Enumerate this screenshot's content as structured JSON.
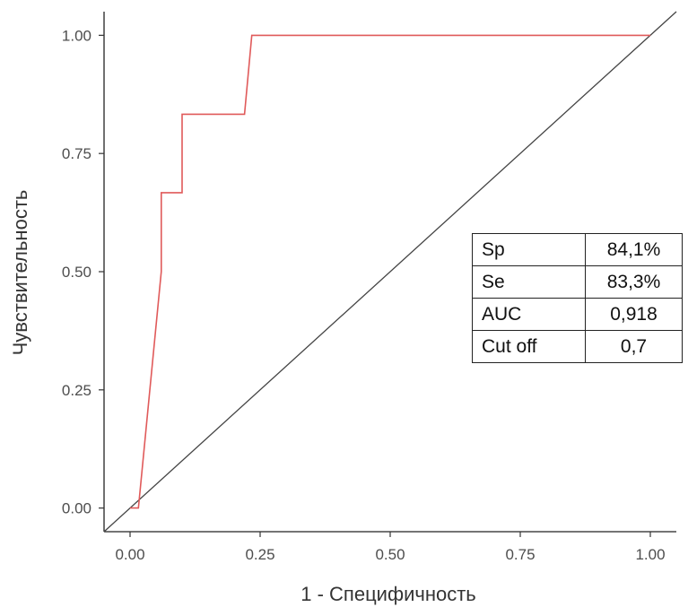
{
  "chart_data": {
    "type": "line",
    "xlabel": "1 - Специфичность",
    "ylabel": "Чувствительность",
    "xlim": [
      -0.05,
      1.05
    ],
    "ylim": [
      -0.05,
      1.05
    ],
    "x_ticks": [
      {
        "value": 0,
        "label": "0.00"
      },
      {
        "value": 0.25,
        "label": "0.25"
      },
      {
        "value": 0.5,
        "label": "0.50"
      },
      {
        "value": 0.75,
        "label": "0.75"
      },
      {
        "value": 1,
        "label": "1.00"
      }
    ],
    "y_ticks": [
      {
        "value": 0,
        "label": "0.00"
      },
      {
        "value": 0.25,
        "label": "0.25"
      },
      {
        "value": 0.5,
        "label": "0.50"
      },
      {
        "value": 0.75,
        "label": "0.75"
      },
      {
        "value": 1,
        "label": "1.00"
      }
    ],
    "grid": false,
    "series": [
      {
        "color": "#e05a5a",
        "x": [
          0,
          0.01,
          0.016,
          0.06,
          0.06,
          0.1,
          0.1,
          0.22,
          0.234,
          1.0
        ],
        "y": [
          0,
          0,
          0,
          0.5,
          0.667,
          0.667,
          0.833,
          0.833,
          1.0,
          1.0
        ]
      }
    ],
    "reference_line": {
      "color": "#444444",
      "x": [
        -0.05,
        1.05
      ],
      "y": [
        -0.05,
        1.05
      ]
    }
  },
  "stats_table": {
    "rows": [
      {
        "param": "Sp",
        "value": "84,1%"
      },
      {
        "param": "Se",
        "value": "83,3%"
      },
      {
        "param": "AUC",
        "value": "0,918"
      },
      {
        "param": "Cut off",
        "value": "0,7"
      }
    ]
  }
}
